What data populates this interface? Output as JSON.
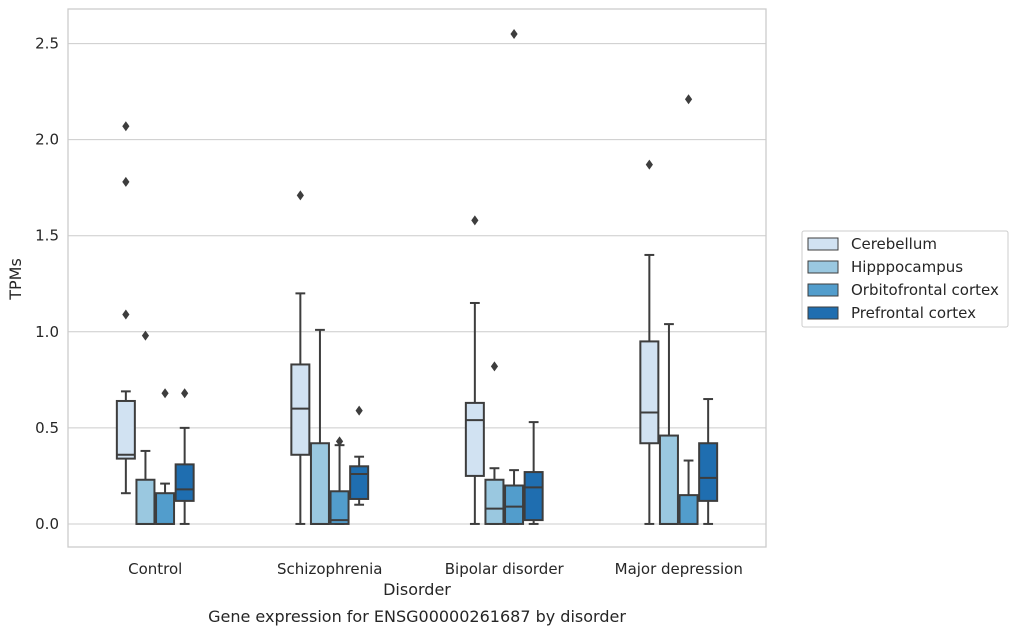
{
  "caption": "Gene expression for ENSG00000261687 by disorder",
  "colors": {
    "Cerebellum": "#d1e2f2",
    "Hipppocampus": "#9ac8e0",
    "Orbitofrontal cortex": "#529dcc",
    "Prefrontal cortex": "#1f6eb0",
    "edge": "#3d3d3d",
    "grid": "#cccccc",
    "frame": "#cccccc"
  },
  "chart_data": {
    "type": "box",
    "title": "",
    "xlabel": "Disorder",
    "ylabel": "TPMs",
    "ylim": [
      -0.12,
      2.68
    ],
    "yticks": [
      0.0,
      0.5,
      1.0,
      1.5,
      2.0,
      2.5
    ],
    "ytick_labels": [
      "0.0",
      "0.5",
      "1.0",
      "1.5",
      "2.0",
      "2.5"
    ],
    "grid": "horizontal",
    "legend_position": "right",
    "categories": [
      "Control",
      "Schizophrenia",
      "Bipolar disorder",
      "Major depression"
    ],
    "series": [
      {
        "name": "Cerebellum",
        "boxes": [
          {
            "whisker_low": 0.16,
            "q1": 0.34,
            "median": 0.36,
            "q3": 0.64,
            "whisker_high": 0.69,
            "outliers": [
              1.09,
              1.78,
              2.07
            ]
          },
          {
            "whisker_low": 0.0,
            "q1": 0.36,
            "median": 0.6,
            "q3": 0.83,
            "whisker_high": 1.2,
            "outliers": [
              1.71
            ]
          },
          {
            "whisker_low": 0.0,
            "q1": 0.25,
            "median": 0.54,
            "q3": 0.63,
            "whisker_high": 1.15,
            "outliers": [
              1.58
            ]
          },
          {
            "whisker_low": 0.0,
            "q1": 0.42,
            "median": 0.58,
            "q3": 0.95,
            "whisker_high": 1.4,
            "outliers": [
              1.87
            ]
          }
        ]
      },
      {
        "name": "Hipppocampus",
        "boxes": [
          {
            "whisker_low": 0.0,
            "q1": 0.0,
            "median": 0.0,
            "q3": 0.23,
            "whisker_high": 0.38,
            "outliers": [
              0.98
            ]
          },
          {
            "whisker_low": 0.0,
            "q1": 0.0,
            "median": 0.0,
            "q3": 0.42,
            "whisker_high": 1.01,
            "outliers": []
          },
          {
            "whisker_low": 0.0,
            "q1": 0.0,
            "median": 0.08,
            "q3": 0.23,
            "whisker_high": 0.29,
            "outliers": [
              0.82
            ]
          },
          {
            "whisker_low": 0.0,
            "q1": 0.0,
            "median": 0.0,
            "q3": 0.46,
            "whisker_high": 1.04,
            "outliers": []
          }
        ]
      },
      {
        "name": "Orbitofrontal cortex",
        "boxes": [
          {
            "whisker_low": 0.0,
            "q1": 0.0,
            "median": 0.0,
            "q3": 0.16,
            "whisker_high": 0.21,
            "outliers": [
              0.68
            ]
          },
          {
            "whisker_low": 0.0,
            "q1": 0.0,
            "median": 0.02,
            "q3": 0.17,
            "whisker_high": 0.41,
            "outliers": [
              0.43
            ]
          },
          {
            "whisker_low": 0.0,
            "q1": 0.0,
            "median": 0.09,
            "q3": 0.2,
            "whisker_high": 0.28,
            "outliers": [
              2.55
            ]
          },
          {
            "whisker_low": 0.0,
            "q1": 0.0,
            "median": 0.0,
            "q3": 0.15,
            "whisker_high": 0.33,
            "outliers": [
              2.21
            ]
          }
        ]
      },
      {
        "name": "Prefrontal cortex",
        "boxes": [
          {
            "whisker_low": 0.0,
            "q1": 0.12,
            "median": 0.18,
            "q3": 0.31,
            "whisker_high": 0.5,
            "outliers": [
              0.68
            ]
          },
          {
            "whisker_low": 0.1,
            "q1": 0.13,
            "median": 0.26,
            "q3": 0.3,
            "whisker_high": 0.35,
            "outliers": [
              0.59
            ]
          },
          {
            "whisker_low": 0.0,
            "q1": 0.02,
            "median": 0.19,
            "q3": 0.27,
            "whisker_high": 0.53,
            "outliers": []
          },
          {
            "whisker_low": 0.0,
            "q1": 0.12,
            "median": 0.24,
            "q3": 0.42,
            "whisker_high": 0.65,
            "outliers": []
          }
        ]
      }
    ]
  }
}
